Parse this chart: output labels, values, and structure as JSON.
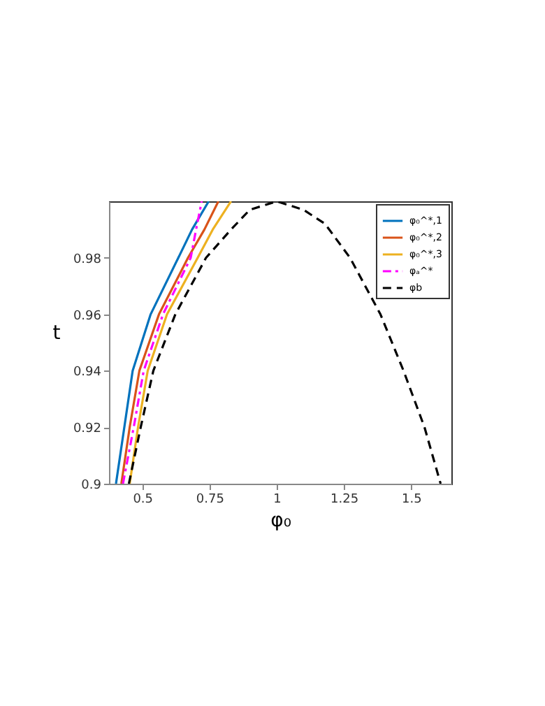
{
  "chart_data": {
    "type": "line",
    "xlabel": "φ₀",
    "ylabel": "t",
    "xlim": [
      0.376,
      1.65
    ],
    "xticks": [
      0.5,
      0.75,
      1,
      1.25,
      1.5
    ],
    "ylim": [
      0.9,
      1.0
    ],
    "yticks": [
      0.9,
      0.92,
      0.94,
      0.96,
      0.98
    ],
    "grid": false,
    "legend": "top right",
    "series": [
      {
        "name": "φ₀^*,1",
        "color": "#0072bd",
        "line_style": "solid",
        "x": [
          0.402,
          0.433,
          0.464,
          0.531,
          0.634,
          0.685,
          0.747
        ],
        "values": [
          0.9,
          0.92,
          0.94,
          0.96,
          0.98,
          0.99,
          1.0
        ]
      },
      {
        "name": "φ₀^*,2",
        "color": "#d95319",
        "line_style": "solid",
        "x": [
          0.422,
          0.453,
          0.489,
          0.562,
          0.67,
          0.731,
          0.783
        ],
        "values": [
          0.9,
          0.92,
          0.94,
          0.96,
          0.98,
          0.99,
          1.0
        ]
      },
      {
        "name": "φ₀^*,3",
        "color": "#edb120",
        "line_style": "solid",
        "x": [
          0.453,
          0.484,
          0.52,
          0.592,
          0.706,
          0.762,
          0.83
        ],
        "values": [
          0.9,
          0.92,
          0.94,
          0.96,
          0.98,
          0.99,
          1.0
        ]
      },
      {
        "name": "φₐ^*",
        "color": "#ff00ff",
        "line_style": "dashdot",
        "x": [
          0.428,
          0.468,
          0.505,
          0.577,
          0.68,
          0.7,
          0.721
        ],
        "values": [
          0.9,
          0.92,
          0.94,
          0.96,
          0.98,
          0.99,
          1.0
        ]
      },
      {
        "name": "φb",
        "color": "#000000",
        "line_style": "dashed",
        "x": [
          0.45,
          0.494,
          0.541,
          0.623,
          0.737,
          0.83,
          0.9,
          1.0,
          1.1,
          1.18,
          1.273,
          1.386,
          1.472,
          1.55,
          1.61
        ],
        "values": [
          0.9,
          0.92,
          0.94,
          0.96,
          0.98,
          0.99,
          0.997,
          1.0,
          0.997,
          0.992,
          0.98,
          0.96,
          0.94,
          0.92,
          0.9
        ]
      }
    ]
  }
}
